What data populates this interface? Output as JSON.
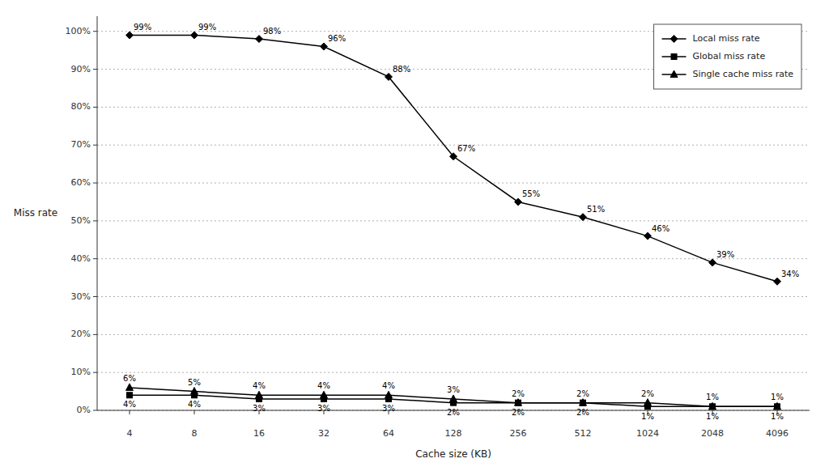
{
  "chart_data": {
    "type": "line",
    "categories": [
      "4",
      "8",
      "16",
      "32",
      "64",
      "128",
      "256",
      "512",
      "1024",
      "2048",
      "4096"
    ],
    "xlabel": "Cache size (KB)",
    "ylabel": "Miss rate",
    "series": [
      {
        "name": "Local miss rate",
        "color": "#000000",
        "marker": "diamond",
        "values": [
          0.99,
          0.99,
          0.98,
          0.96,
          0.88,
          0.67,
          0.55,
          0.51,
          0.46,
          0.39,
          0.34
        ],
        "value_labels": [
          "99%",
          "99%",
          "98%",
          "96%",
          "88%",
          "67%",
          "55%",
          "51%",
          "46%",
          "39%",
          "34%"
        ]
      },
      {
        "name": "Global miss rate",
        "color": "#000000",
        "marker": "square",
        "values": [
          0.04,
          0.04,
          0.03,
          0.03,
          0.03,
          0.02,
          0.02,
          0.02,
          0.01,
          0.01,
          0.01
        ],
        "value_labels": [
          "4%",
          "4%",
          "3%",
          "3%",
          "3%",
          "2%",
          "2%",
          "2%",
          "1%",
          "1%",
          "1%"
        ]
      },
      {
        "name": "Single cache miss rate",
        "color": "#000000",
        "marker": "triangle",
        "values": [
          0.06,
          0.05,
          0.04,
          0.04,
          0.04,
          0.03,
          0.02,
          0.02,
          0.02,
          0.01,
          0.01
        ],
        "value_labels": [
          "6%",
          "5%",
          "4%",
          "4%",
          "4%",
          "3%",
          "2%",
          "2%",
          "2%",
          "1%",
          "1%"
        ]
      }
    ],
    "ylim": [
      0.0,
      1.04
    ],
    "yticks": [
      {
        "value": 0.0,
        "label": "0%"
      },
      {
        "value": 0.1,
        "label": "10%"
      },
      {
        "value": 0.2,
        "label": "20%"
      },
      {
        "value": 0.3,
        "label": "30%"
      },
      {
        "value": 0.4,
        "label": "40%"
      },
      {
        "value": 0.5,
        "label": "50%"
      },
      {
        "value": 0.6,
        "label": "60%"
      },
      {
        "value": 0.7,
        "label": "70%"
      },
      {
        "value": 0.8,
        "label": "80%"
      },
      {
        "value": 0.9,
        "label": "90%"
      },
      {
        "value": 1.0,
        "label": "100%"
      }
    ],
    "grid": true,
    "legend": "upper right",
    "data_labels": true
  }
}
